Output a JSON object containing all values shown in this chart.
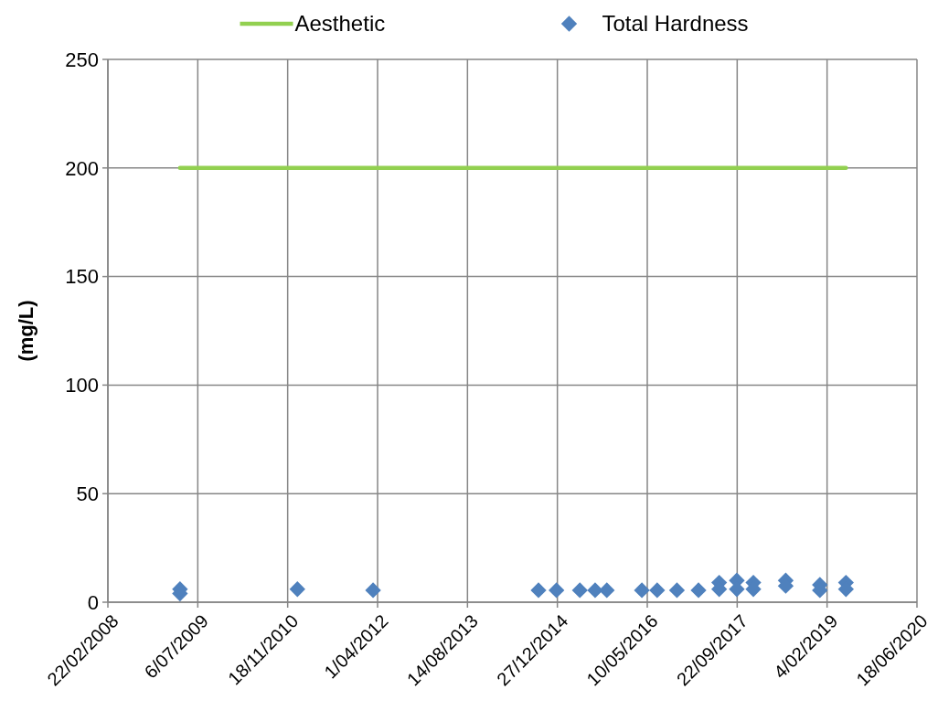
{
  "chart_data": {
    "type": "scatter",
    "ylabel": "(mg/L)",
    "xlim": [
      "2008-02-22",
      "2020-06-18"
    ],
    "xticks": [
      {
        "value": "2008-02-22",
        "label": "22/02/2008"
      },
      {
        "value": "2009-07-06",
        "label": "6/07/2009"
      },
      {
        "value": "2010-11-18",
        "label": "18/11/2010"
      },
      {
        "value": "2012-04-01",
        "label": "1/04/2012"
      },
      {
        "value": "2013-08-14",
        "label": "14/08/2013"
      },
      {
        "value": "2014-12-27",
        "label": "27/12/2014"
      },
      {
        "value": "2016-05-10",
        "label": "10/05/2016"
      },
      {
        "value": "2017-09-22",
        "label": "22/09/2017"
      },
      {
        "value": "2019-02-04",
        "label": "4/02/2019"
      },
      {
        "value": "2020-06-18",
        "label": "18/06/2020"
      }
    ],
    "ylim": [
      0,
      250
    ],
    "yticks": [
      0,
      50,
      100,
      150,
      200,
      250
    ],
    "grid": true,
    "legend": "top",
    "series": [
      {
        "name": "Aesthetic",
        "type": "line",
        "color": "#92d050",
        "marker": "none",
        "x": [
          "2009-03-29",
          "2019-05-20"
        ],
        "values": [
          200,
          200
        ]
      },
      {
        "name": "Total Hardness",
        "color": "#4f81bd",
        "marker": "diamond",
        "x": [
          "2009-03-29",
          "2009-03-29",
          "2011-01-11",
          "2012-03-07",
          "2014-09-13",
          "2014-12-22",
          "2015-05-01",
          "2015-07-25",
          "2015-09-28",
          "2016-04-10",
          "2016-07-04",
          "2016-10-22",
          "2017-02-19",
          "2017-06-14",
          "2017-06-14",
          "2017-09-20",
          "2017-09-20",
          "2017-12-21",
          "2017-12-21",
          "2018-06-19",
          "2018-06-19",
          "2018-12-26",
          "2018-12-26",
          "2019-05-20",
          "2019-05-20"
        ],
        "values": [
          4,
          6,
          6,
          5.5,
          5.5,
          5.5,
          5.5,
          5.5,
          5.5,
          5.5,
          5.5,
          5.5,
          5.5,
          9,
          6,
          10,
          6,
          9,
          6,
          10,
          7.5,
          8,
          5.5,
          9,
          6
        ]
      }
    ]
  }
}
